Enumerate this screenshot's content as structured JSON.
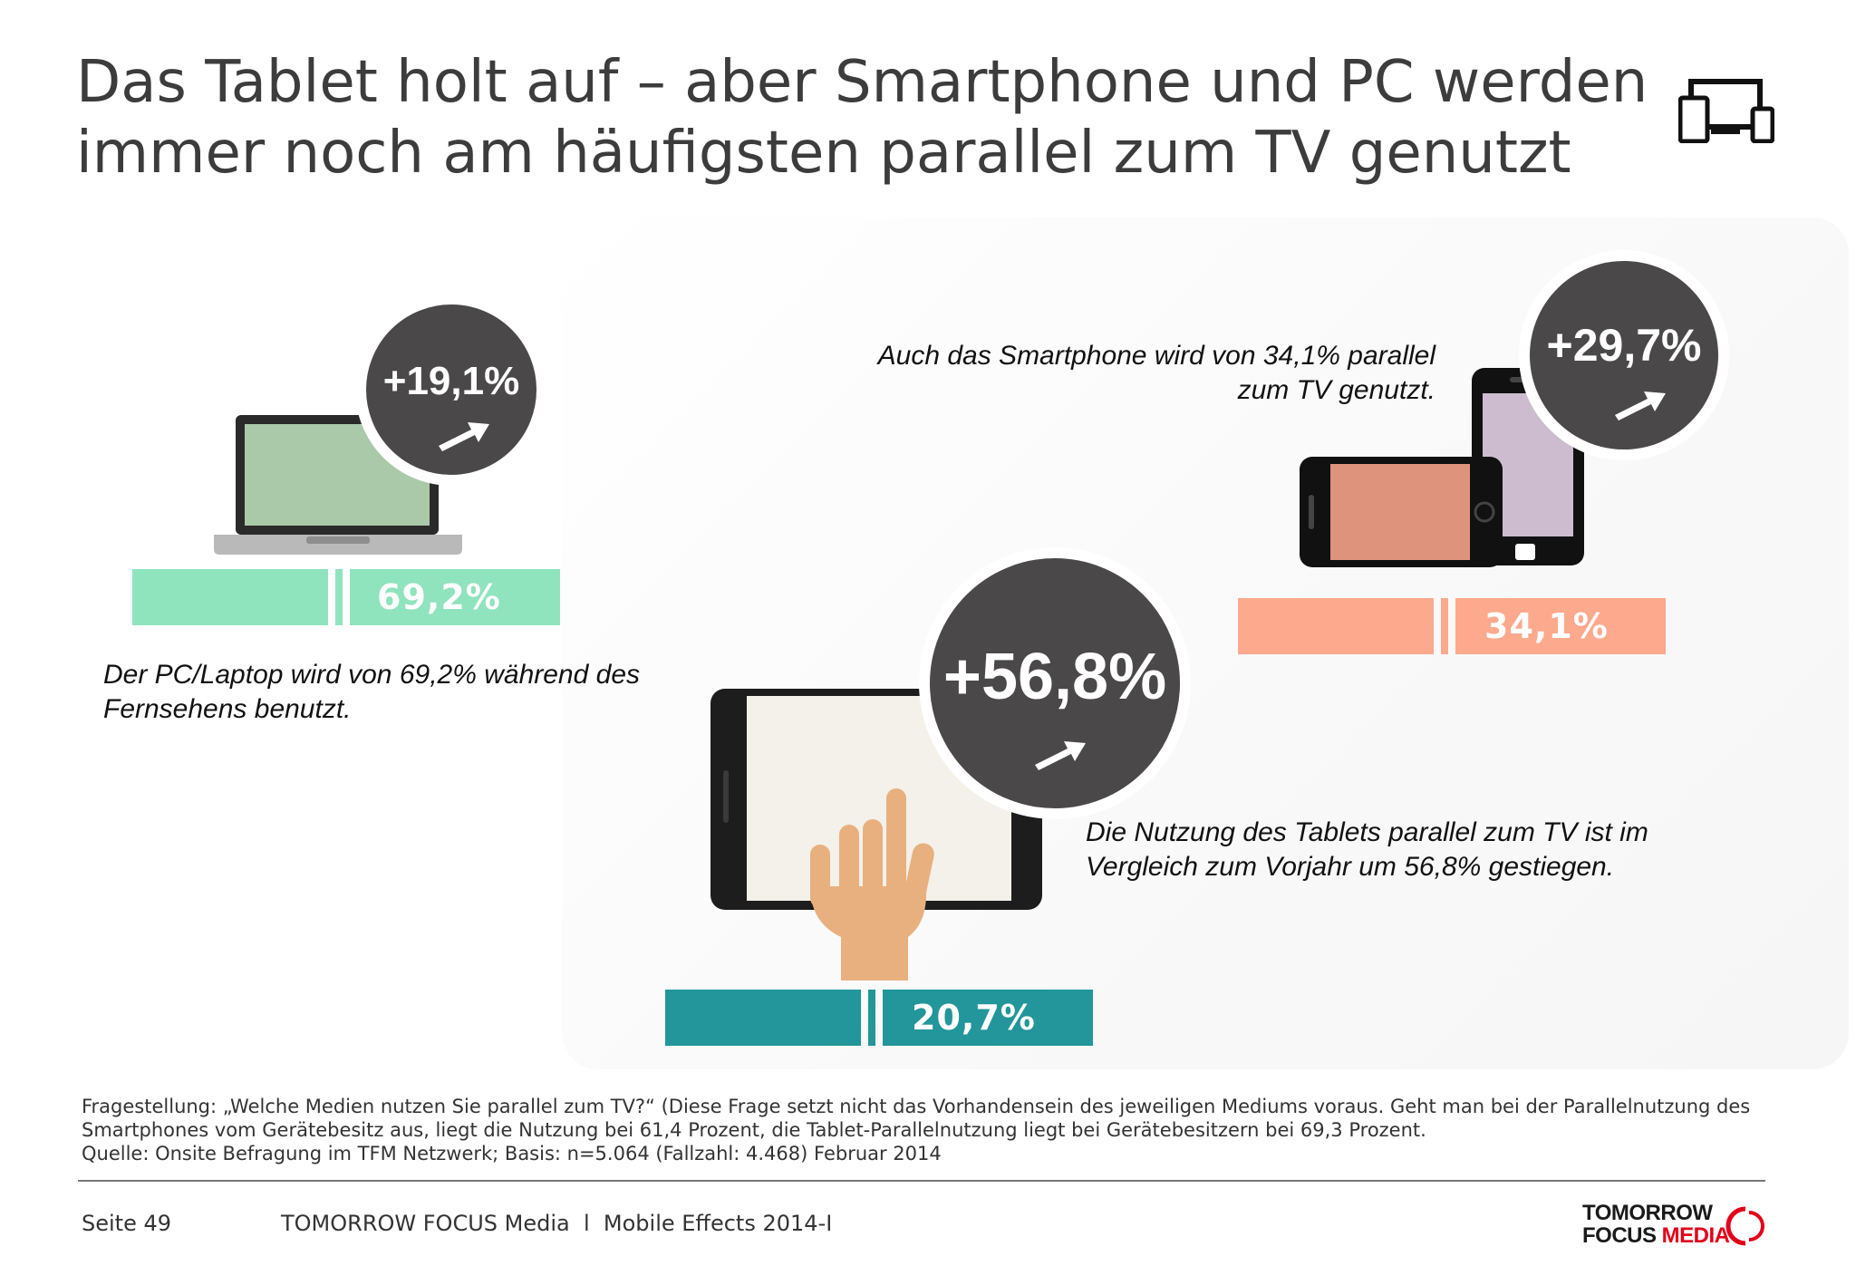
{
  "title": "Das Tablet holt auf – aber Smartphone und PC werden immer noch am häufigsten parallel zum TV genutzt",
  "devices": {
    "pc": {
      "value": "69,2%",
      "value_num": 69.2,
      "change": "+19,1%",
      "caption": "Der PC/Laptop wird von 69,2% während des Fernsehens benutzt.",
      "color": "#8fe3bd"
    },
    "smartphone": {
      "value": "34,1%",
      "value_num": 34.1,
      "change": "+29,7%",
      "caption": "Auch das Smartphone wird von 34,1%  parallel zum TV genutzt.",
      "color": "#fca98d"
    },
    "tablet": {
      "value": "20,7%",
      "value_num": 20.7,
      "change": "+56,8%",
      "caption": "Die Nutzung des Tablets parallel zum TV ist im Vergleich zum Vorjahr um 56,8% gestiegen.",
      "color": "#22969a"
    }
  },
  "footnote": {
    "question": "Fragestellung: „Welche Medien nutzen Sie parallel zum TV?“ (Diese Frage setzt nicht das Vorhandensein des jeweiligen Mediums voraus. Geht man bei der Parallelnutzung des Smartphones vom Gerätebesitz aus, liegt die Nutzung bei 61,4 Prozent, die Tablet-Parallelnutzung liegt bei Gerätebesitzern bei 69,3 Prozent.",
    "source": "Quelle: Onsite Befragung im TFM Netzwerk; Basis: n=5.064 (Fallzahl: 4.468) Februar 2014"
  },
  "footer": {
    "page": "Seite 49",
    "publisher": "TOMORROW FOCUS Media  l  Mobile Effects 2014-I",
    "logo_line1": "TOMORROW",
    "logo_line2a": "FOCUS",
    "logo_line2b": "MEDIA",
    "logo_color": "#e2001a"
  },
  "icons": [
    "devices-icon",
    "laptop-icon",
    "smartphone-icon",
    "tablet-icon",
    "hand-icon",
    "arrow-up-right-icon"
  ]
}
